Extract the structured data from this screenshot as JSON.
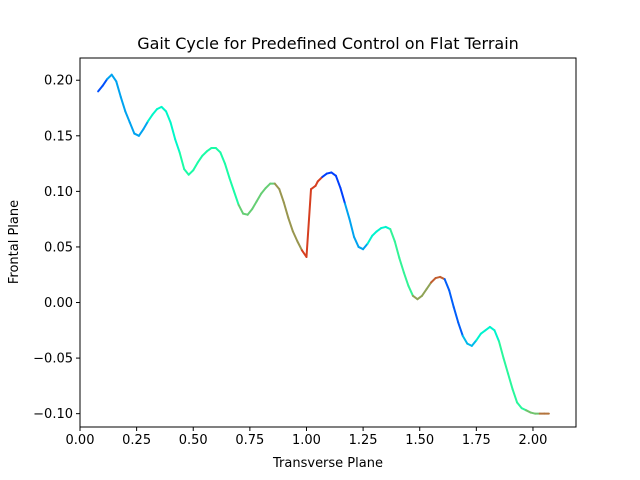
{
  "chart_data": {
    "type": "line",
    "title": "Gait Cycle for Predefined Control on Flat Terrain",
    "xlabel": "Transverse Plane",
    "ylabel": "Frontal Plane",
    "xlim": [
      0.0,
      2.19
    ],
    "ylim": [
      -0.112,
      0.22
    ],
    "xticks": [
      0.0,
      0.25,
      0.5,
      0.75,
      1.0,
      1.25,
      1.5,
      1.75,
      2.0
    ],
    "xtick_labels": [
      "0.00",
      "0.25",
      "0.50",
      "0.75",
      "1.00",
      "1.25",
      "1.50",
      "1.75",
      "2.00"
    ],
    "yticks": [
      -0.1,
      -0.05,
      0.0,
      0.05,
      0.1,
      0.15,
      0.2
    ],
    "ytick_labels": [
      "−0.10",
      "−0.05",
      "0.00",
      "0.05",
      "0.10",
      "0.15",
      "0.20"
    ],
    "grid": false,
    "legend": false,
    "colormap": "rainbow",
    "series": [
      {
        "x": [
          0.08,
          0.1,
          0.12,
          0.14,
          0.16,
          0.18,
          0.2,
          0.22,
          0.24,
          0.26,
          0.28,
          0.3,
          0.32,
          0.34,
          0.36,
          0.38,
          0.4,
          0.42,
          0.44,
          0.46,
          0.48,
          0.5,
          0.52,
          0.54,
          0.56,
          0.58,
          0.6,
          0.62,
          0.64,
          0.66,
          0.68,
          0.7,
          0.72,
          0.74,
          0.76,
          0.78,
          0.8,
          0.82,
          0.84,
          0.86,
          0.88,
          0.9,
          0.92,
          0.94,
          0.96,
          0.98,
          1.0,
          1.02,
          1.04,
          1.05,
          1.07,
          1.09,
          1.11,
          1.13,
          1.15,
          1.17,
          1.19,
          1.21,
          1.23,
          1.25,
          1.27,
          1.29,
          1.31,
          1.33,
          1.35,
          1.37,
          1.39,
          1.41,
          1.43,
          1.45,
          1.47,
          1.49,
          1.51,
          1.53,
          1.55,
          1.57,
          1.59,
          1.61,
          1.63,
          1.65,
          1.67,
          1.69,
          1.71,
          1.73,
          1.75,
          1.77,
          1.79,
          1.81,
          1.83,
          1.85,
          1.87,
          1.89,
          1.91,
          1.93,
          1.95,
          1.97,
          1.99,
          2.01,
          2.03,
          2.05,
          2.07
        ],
        "y": [
          0.19,
          0.195,
          0.201,
          0.205,
          0.199,
          0.185,
          0.172,
          0.162,
          0.152,
          0.15,
          0.156,
          0.163,
          0.169,
          0.174,
          0.176,
          0.172,
          0.162,
          0.147,
          0.135,
          0.12,
          0.115,
          0.119,
          0.126,
          0.132,
          0.136,
          0.139,
          0.139,
          0.135,
          0.125,
          0.112,
          0.1,
          0.088,
          0.08,
          0.079,
          0.084,
          0.091,
          0.098,
          0.103,
          0.107,
          0.107,
          0.102,
          0.09,
          0.076,
          0.064,
          0.055,
          0.047,
          0.041,
          0.102,
          0.105,
          0.109,
          0.113,
          0.116,
          0.117,
          0.114,
          0.103,
          0.089,
          0.075,
          0.059,
          0.05,
          0.048,
          0.053,
          0.06,
          0.064,
          0.067,
          0.068,
          0.066,
          0.055,
          0.04,
          0.027,
          0.015,
          0.006,
          0.003,
          0.006,
          0.012,
          0.018,
          0.022,
          0.023,
          0.021,
          0.011,
          -0.004,
          -0.018,
          -0.03,
          -0.037,
          -0.039,
          -0.034,
          -0.028,
          -0.025,
          -0.022,
          -0.025,
          -0.035,
          -0.05,
          -0.064,
          -0.078,
          -0.09,
          -0.095,
          -0.097,
          -0.099,
          -0.1,
          -0.1,
          -0.1,
          -0.1
        ]
      }
    ]
  }
}
